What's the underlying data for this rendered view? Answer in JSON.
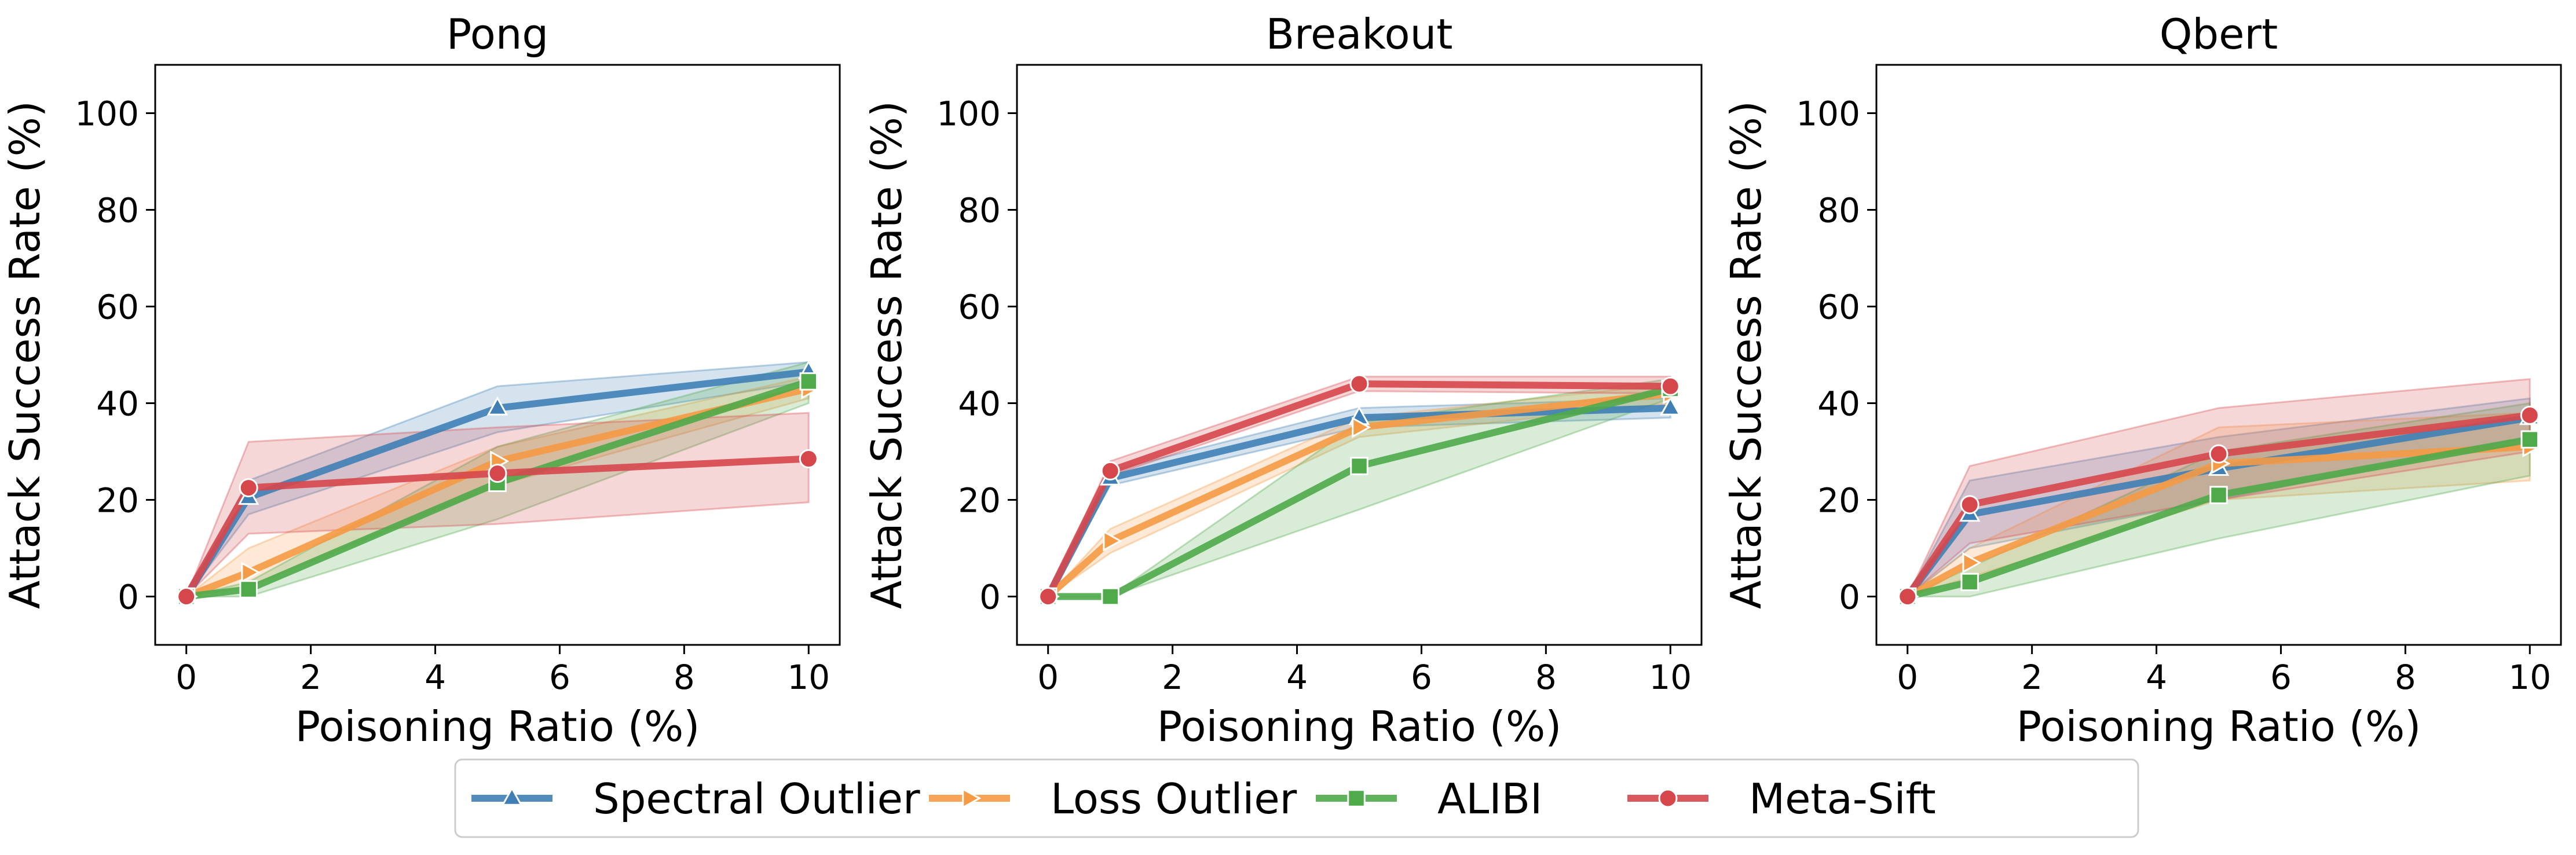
{
  "chart_data": [
    {
      "type": "line",
      "title": "Pong",
      "xlabel": "Poisoning Ratio (%)",
      "ylabel": "Attack Success Rate (%)",
      "x": [
        0,
        1,
        5,
        10
      ],
      "xlim": [
        -0.5,
        10.5
      ],
      "ylim": [
        -10,
        110
      ],
      "xticks": [
        0,
        2,
        4,
        6,
        8,
        10
      ],
      "yticks": [
        0,
        20,
        40,
        60,
        80,
        100
      ],
      "grid": false,
      "series": [
        {
          "name": "Spectral Outlier",
          "values": [
            0,
            20.5,
            39,
            46.5
          ],
          "lower": [
            0,
            17,
            34,
            44.5
          ],
          "upper": [
            0,
            24,
            43.5,
            48.5
          ]
        },
        {
          "name": "Loss Outlier",
          "values": [
            0,
            5,
            28,
            43
          ],
          "lower": [
            0,
            2,
            23,
            41
          ],
          "upper": [
            0,
            10,
            31,
            45.5
          ]
        },
        {
          "name": "ALIBI",
          "values": [
            0,
            1.5,
            23.5,
            44.5
          ],
          "lower": [
            0,
            0,
            16,
            40
          ],
          "upper": [
            0,
            3,
            31,
            48.5
          ]
        },
        {
          "name": "Meta-Sift",
          "values": [
            0,
            22.5,
            25.5,
            28.5
          ],
          "lower": [
            0,
            13,
            15,
            19.5
          ],
          "upper": [
            0,
            32,
            35,
            38
          ]
        }
      ]
    },
    {
      "type": "line",
      "title": "Breakout",
      "xlabel": "Poisoning Ratio (%)",
      "ylabel": "Attack Success Rate (%)",
      "x": [
        0,
        1,
        5,
        10
      ],
      "xlim": [
        -0.5,
        10.5
      ],
      "ylim": [
        -10,
        110
      ],
      "xticks": [
        0,
        2,
        4,
        6,
        8,
        10
      ],
      "yticks": [
        0,
        20,
        40,
        60,
        80,
        100
      ],
      "grid": false,
      "series": [
        {
          "name": "Spectral Outlier",
          "values": [
            0,
            24.5,
            37,
            39
          ],
          "lower": [
            0,
            23,
            35,
            37
          ],
          "upper": [
            0,
            26,
            39,
            41
          ]
        },
        {
          "name": "Loss Outlier",
          "values": [
            0,
            11.5,
            35,
            42
          ],
          "lower": [
            0,
            9,
            33,
            40
          ],
          "upper": [
            0,
            14,
            37,
            44
          ]
        },
        {
          "name": "ALIBI",
          "values": [
            0,
            0,
            27,
            43
          ],
          "lower": [
            0,
            0,
            18,
            41
          ],
          "upper": [
            0,
            0,
            36,
            45
          ]
        },
        {
          "name": "Meta-Sift",
          "values": [
            0,
            26,
            44,
            43.5
          ],
          "lower": [
            0,
            25,
            42.5,
            42
          ],
          "upper": [
            0,
            28,
            45.5,
            45.5
          ]
        }
      ]
    },
    {
      "type": "line",
      "title": "Qbert",
      "xlabel": "Poisoning Ratio (%)",
      "ylabel": "Attack Success Rate (%)",
      "x": [
        0,
        1,
        5,
        10
      ],
      "xlim": [
        -0.5,
        10.5
      ],
      "ylim": [
        -10,
        110
      ],
      "xticks": [
        0,
        2,
        4,
        6,
        8,
        10
      ],
      "yticks": [
        0,
        20,
        40,
        60,
        80,
        100
      ],
      "grid": false,
      "series": [
        {
          "name": "Spectral Outlier",
          "values": [
            0,
            17,
            26.5,
            37
          ],
          "lower": [
            0,
            10,
            20,
            33
          ],
          "upper": [
            0,
            24,
            33,
            41
          ]
        },
        {
          "name": "Loss Outlier",
          "values": [
            0,
            7,
            27.5,
            31
          ],
          "lower": [
            0,
            4,
            20,
            24
          ],
          "upper": [
            0,
            10,
            35,
            38
          ]
        },
        {
          "name": "ALIBI",
          "values": [
            0,
            3,
            21,
            32.5
          ],
          "lower": [
            0,
            0,
            12,
            25
          ],
          "upper": [
            0,
            6,
            30,
            40
          ]
        },
        {
          "name": "Meta-Sift",
          "values": [
            0,
            19,
            29.5,
            37.5
          ],
          "lower": [
            0,
            11,
            20,
            30
          ],
          "upper": [
            0,
            27,
            39,
            45
          ]
        }
      ]
    }
  ],
  "legend": {
    "placement": "bottom-center",
    "entries": [
      {
        "name": "Spectral Outlier",
        "color": "#3f7fb5",
        "marker": "triangle"
      },
      {
        "name": "Loss Outlier",
        "color": "#f59a45",
        "marker": "triangle-right"
      },
      {
        "name": "ALIBI",
        "color": "#4faa4a",
        "marker": "square"
      },
      {
        "name": "Meta-Sift",
        "color": "#d6474c",
        "marker": "circle"
      }
    ]
  }
}
